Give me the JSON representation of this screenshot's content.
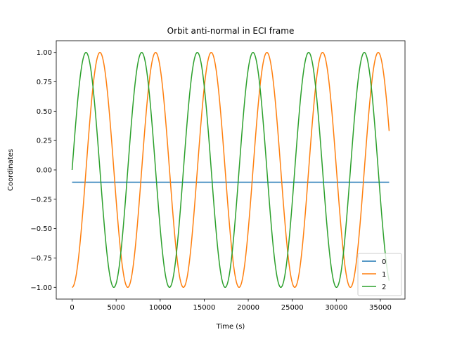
{
  "chart_data": {
    "type": "line",
    "title": "Orbit anti-normal in ECI frame",
    "xlabel": "Time (s)",
    "ylabel": "Coordinates",
    "xlim": [
      -1800,
      37800
    ],
    "ylim": [
      -1.1,
      1.1
    ],
    "xticks": [
      0,
      5000,
      10000,
      15000,
      20000,
      25000,
      30000,
      35000
    ],
    "xtick_labels": [
      "0",
      "5000",
      "10000",
      "15000",
      "20000",
      "25000",
      "30000",
      "35000"
    ],
    "yticks": [
      1.0,
      0.75,
      0.5,
      0.25,
      0.0,
      -0.25,
      -0.5,
      -0.75,
      -1.0
    ],
    "ytick_labels": [
      "1.00",
      "0.75",
      "0.50",
      "0.25",
      "0.00",
      "−0.25",
      "−0.50",
      "−0.75",
      "−1.00"
    ],
    "grid": false,
    "legend_position": "lower right",
    "x_range": [
      0,
      36000
    ],
    "series": [
      {
        "name": "0",
        "color": "#1f77b4",
        "function": "constant",
        "value": -0.105
      },
      {
        "name": "1",
        "color": "#ff7f0e",
        "function": "-cos",
        "amplitude": 1.0,
        "period": 6320
      },
      {
        "name": "2",
        "color": "#2ca02c",
        "function": "sin",
        "amplitude": 1.0,
        "period": 6320
      }
    ]
  }
}
